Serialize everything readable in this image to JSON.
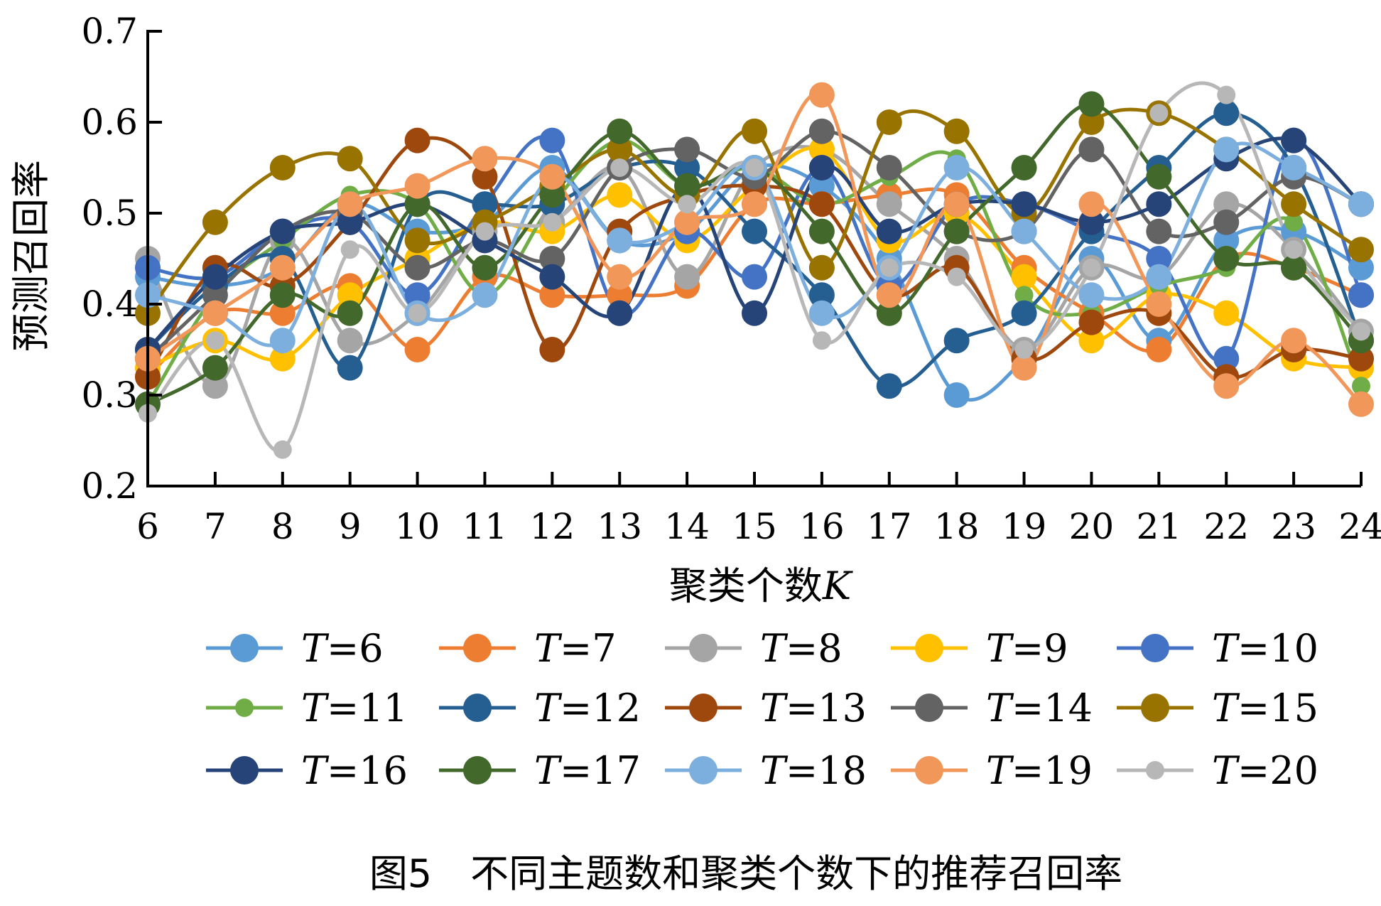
{
  "caption": "图5　不同主题数和聚类个数下的推荐召回率",
  "chart_data": {
    "type": "line",
    "xlabel": "聚类个数",
    "xlabel_var": "K",
    "ylabel": "预测召回率",
    "ylim": [
      0.2,
      0.7
    ],
    "yticks": [
      0.2,
      0.3,
      0.4,
      0.5,
      0.6,
      0.7
    ],
    "ytick_labels": [
      "0.2",
      "0.3",
      "0.4",
      "0.5",
      "0.6",
      "0.7"
    ],
    "categories": [
      "6",
      "7",
      "8",
      "9",
      "10",
      "11",
      "12",
      "13",
      "14",
      "15",
      "16",
      "17",
      "18",
      "19",
      "20",
      "21",
      "22",
      "23",
      "24"
    ],
    "grid": false,
    "legend_position": "bottom",
    "series": [
      {
        "name": "T=6",
        "color": "#5B9BD5",
        "marker": "large",
        "values": [
          0.43,
          0.42,
          0.44,
          0.51,
          0.48,
          0.49,
          0.55,
          0.47,
          0.48,
          0.55,
          0.53,
          0.45,
          0.3,
          0.34,
          0.45,
          0.36,
          0.47,
          0.48,
          0.44
        ]
      },
      {
        "name": "T=7",
        "color": "#ED7D31",
        "marker": "large",
        "values": [
          0.32,
          0.39,
          0.39,
          0.42,
          0.35,
          0.43,
          0.41,
          0.41,
          0.42,
          0.51,
          0.51,
          0.52,
          0.52,
          0.44,
          0.39,
          0.35,
          0.45,
          0.44,
          0.41
        ]
      },
      {
        "name": "T=8",
        "color": "#A5A5A5",
        "marker": "large",
        "values": [
          0.45,
          0.31,
          0.47,
          0.36,
          0.39,
          0.48,
          0.49,
          0.55,
          0.43,
          0.55,
          0.57,
          0.51,
          0.45,
          0.35,
          0.44,
          0.43,
          0.51,
          0.46,
          0.37
        ]
      },
      {
        "name": "T=9",
        "color": "#FFC000",
        "marker": "large",
        "values": [
          0.33,
          0.36,
          0.34,
          0.41,
          0.45,
          0.49,
          0.48,
          0.52,
          0.47,
          0.53,
          0.57,
          0.47,
          0.5,
          0.43,
          0.36,
          0.41,
          0.39,
          0.34,
          0.33
        ]
      },
      {
        "name": "T=10",
        "color": "#4472C4",
        "marker": "large",
        "values": [
          0.44,
          0.43,
          0.48,
          0.49,
          0.41,
          0.51,
          0.58,
          0.39,
          0.48,
          0.43,
          0.55,
          0.42,
          0.51,
          0.51,
          0.48,
          0.45,
          0.34,
          0.58,
          0.41
        ]
      },
      {
        "name": "T=11",
        "color": "#70AD47",
        "marker": "small",
        "values": [
          0.29,
          0.41,
          0.47,
          0.52,
          0.51,
          0.41,
          0.51,
          0.58,
          0.53,
          0.55,
          0.51,
          0.54,
          0.56,
          0.41,
          0.39,
          0.42,
          0.44,
          0.49,
          0.31
        ]
      },
      {
        "name": "T=12",
        "color": "#255E91",
        "marker": "large",
        "values": [
          0.35,
          0.42,
          0.45,
          0.33,
          0.51,
          0.51,
          0.51,
          0.55,
          0.55,
          0.48,
          0.41,
          0.31,
          0.36,
          0.39,
          0.48,
          0.55,
          0.61,
          0.55,
          0.36
        ]
      },
      {
        "name": "T=13",
        "color": "#9E480E",
        "marker": "large",
        "values": [
          0.32,
          0.44,
          0.42,
          0.49,
          0.58,
          0.54,
          0.35,
          0.48,
          0.52,
          0.53,
          0.51,
          0.41,
          0.44,
          0.34,
          0.38,
          0.39,
          0.32,
          0.35,
          0.34
        ]
      },
      {
        "name": "T=14",
        "color": "#636363",
        "marker": "large",
        "values": [
          0.34,
          0.41,
          0.48,
          0.5,
          0.44,
          0.47,
          0.45,
          0.55,
          0.57,
          0.54,
          0.59,
          0.55,
          0.48,
          0.48,
          0.57,
          0.48,
          0.49,
          0.54,
          0.51
        ]
      },
      {
        "name": "T=15",
        "color": "#997300",
        "marker": "large",
        "values": [
          0.39,
          0.49,
          0.55,
          0.56,
          0.47,
          0.49,
          0.53,
          0.57,
          0.52,
          0.59,
          0.44,
          0.6,
          0.59,
          0.5,
          0.6,
          0.61,
          0.57,
          0.51,
          0.46
        ]
      },
      {
        "name": "T=16",
        "color": "#264478",
        "marker": "large",
        "values": [
          0.35,
          0.43,
          0.48,
          0.49,
          0.51,
          0.47,
          0.43,
          0.39,
          0.53,
          0.39,
          0.55,
          0.48,
          0.51,
          0.51,
          0.49,
          0.51,
          0.56,
          0.58,
          0.51
        ]
      },
      {
        "name": "T=17",
        "color": "#43682B",
        "marker": "large",
        "values": [
          0.29,
          0.33,
          0.41,
          0.39,
          0.51,
          0.44,
          0.52,
          0.59,
          0.53,
          0.55,
          0.48,
          0.39,
          0.48,
          0.55,
          0.62,
          0.54,
          0.45,
          0.44,
          0.36
        ]
      },
      {
        "name": "T=18",
        "color": "#7CAFDD",
        "marker": "large",
        "values": [
          0.41,
          0.39,
          0.36,
          0.51,
          0.39,
          0.41,
          0.54,
          0.47,
          0.49,
          0.55,
          0.39,
          0.44,
          0.55,
          0.48,
          0.41,
          0.43,
          0.57,
          0.55,
          0.51
        ]
      },
      {
        "name": "T=19",
        "color": "#F1975A",
        "marker": "large",
        "values": [
          0.34,
          0.39,
          0.44,
          0.51,
          0.53,
          0.56,
          0.54,
          0.43,
          0.49,
          0.51,
          0.63,
          0.41,
          0.51,
          0.33,
          0.51,
          0.4,
          0.31,
          0.36,
          0.29
        ]
      },
      {
        "name": "T=20",
        "color": "#B7B7B7",
        "marker": "small",
        "values": [
          0.28,
          0.36,
          0.24,
          0.46,
          0.39,
          0.48,
          0.49,
          0.55,
          0.51,
          0.55,
          0.36,
          0.44,
          0.43,
          0.35,
          0.44,
          0.61,
          0.63,
          0.46,
          0.37
        ]
      }
    ]
  }
}
